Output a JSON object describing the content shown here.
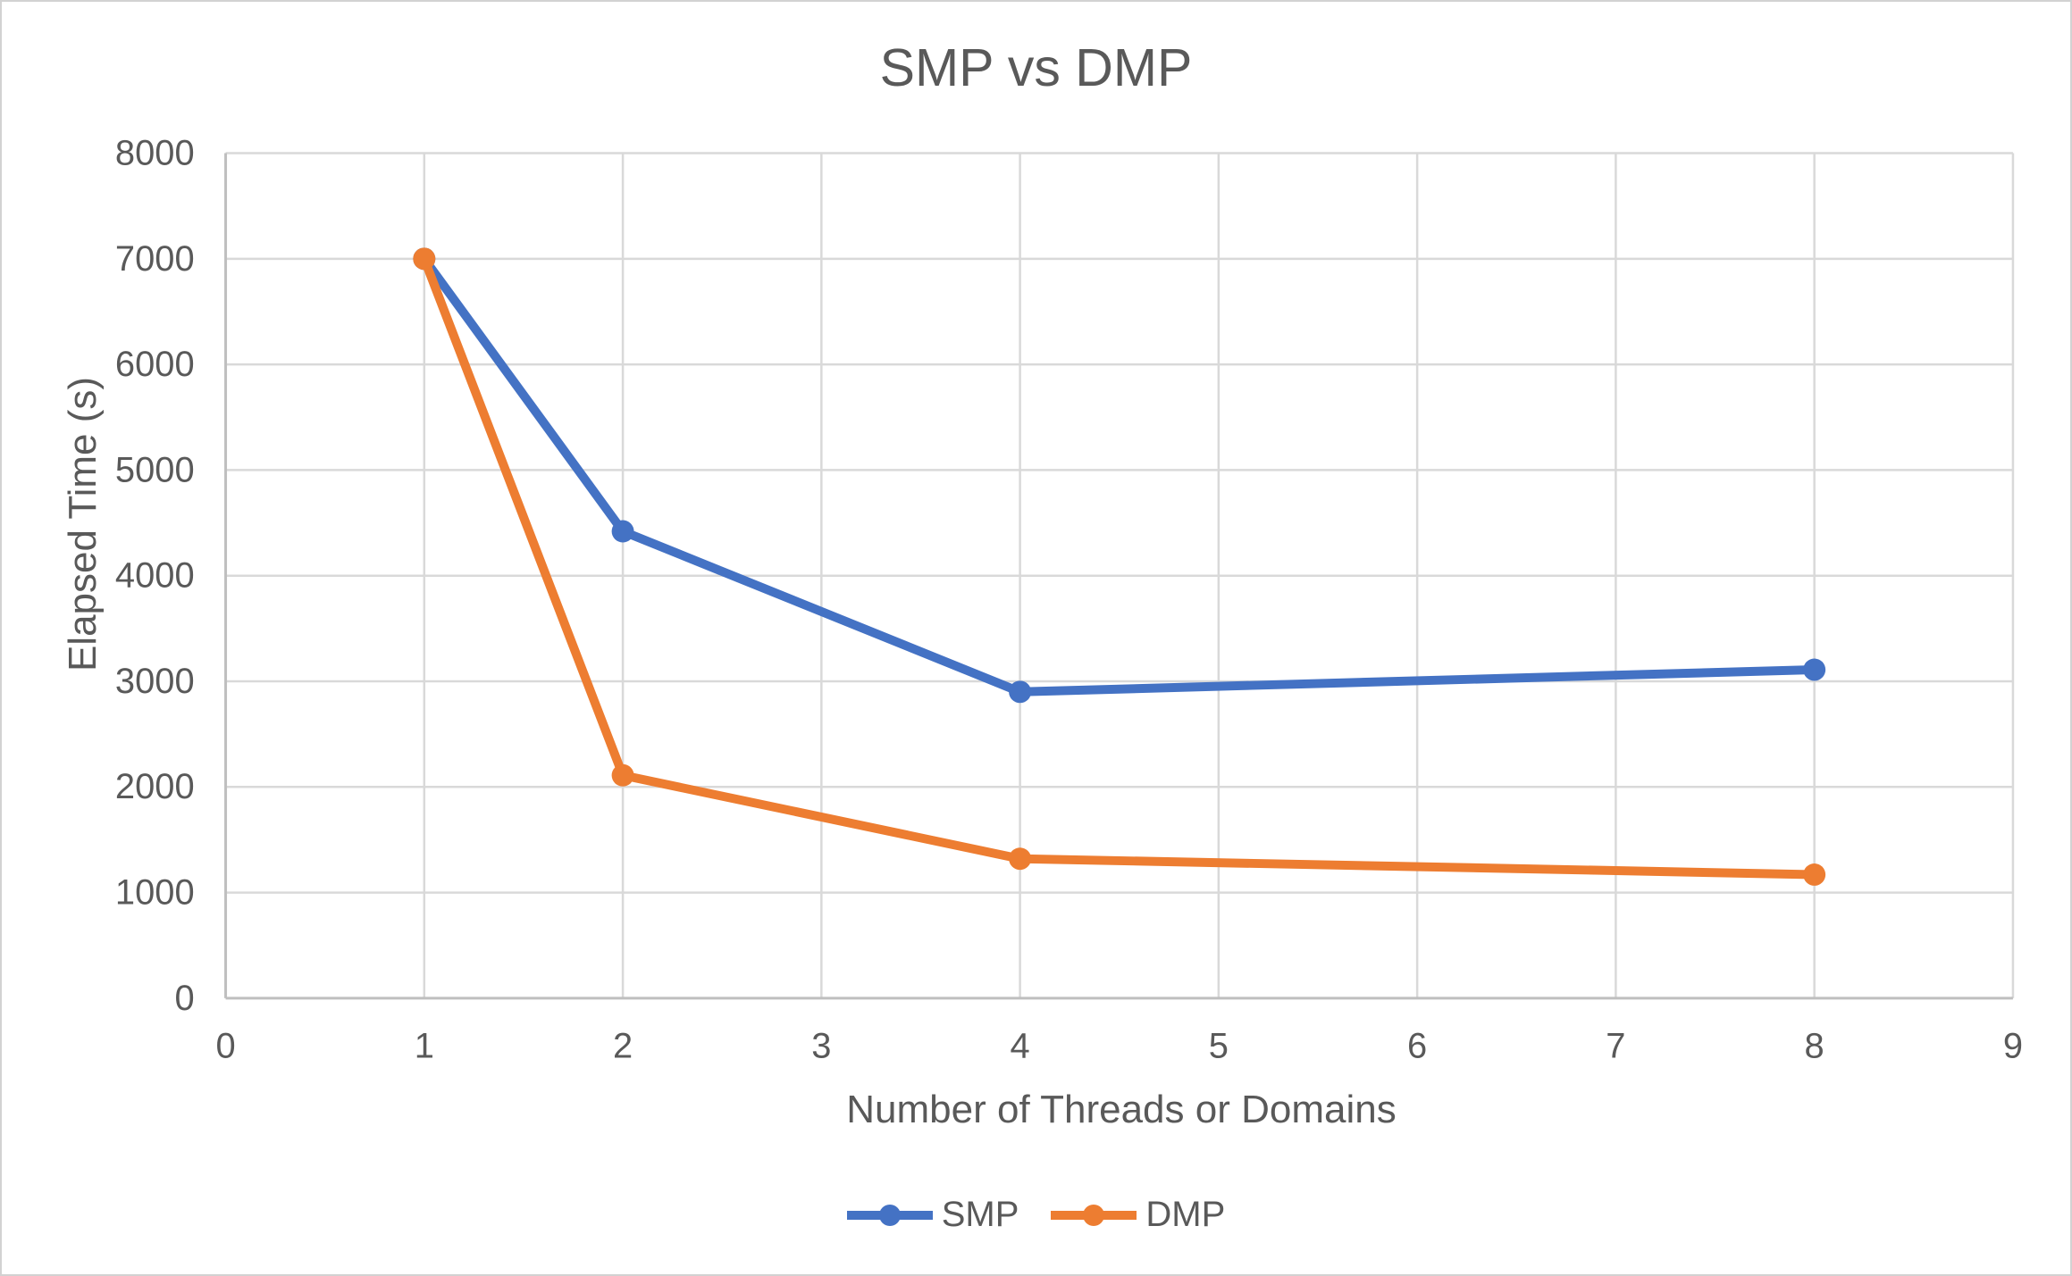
{
  "title": "SMP vs DMP",
  "chart_data": {
    "type": "line",
    "title": "SMP vs DMP",
    "xlabel": "Number of Threads or Domains",
    "ylabel": "Elapsed Time (s)",
    "xlim": [
      0,
      9
    ],
    "ylim": [
      0,
      8000
    ],
    "x_ticks": [
      0,
      1,
      2,
      3,
      4,
      5,
      6,
      7,
      8,
      9
    ],
    "y_ticks": [
      0,
      1000,
      2000,
      3000,
      4000,
      5000,
      6000,
      7000,
      8000
    ],
    "grid": true,
    "legend_position": "bottom-center",
    "series": [
      {
        "name": "SMP",
        "color": "#4472C4",
        "x": [
          1,
          2,
          4,
          8
        ],
        "values": [
          7000,
          4420,
          2900,
          3110
        ]
      },
      {
        "name": "DMP",
        "color": "#ED7D31",
        "x": [
          1,
          2,
          4,
          8
        ],
        "values": [
          7000,
          2110,
          1320,
          1170
        ]
      }
    ]
  },
  "colors": {
    "gridline": "#D9D9D9",
    "axis_line": "#BFBFBF",
    "text": "#595959",
    "background": "#FFFFFF",
    "frame_border": "#D2D2D2"
  }
}
